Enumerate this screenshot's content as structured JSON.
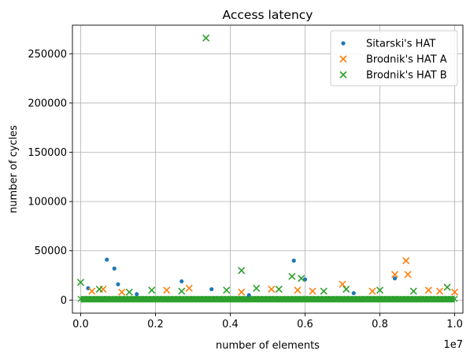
{
  "chart_data": {
    "type": "scatter",
    "title": "Access latency",
    "xlabel": "number of elements",
    "ylabel": "number of cycles",
    "x_offset_label": "1e7",
    "x_scale": 10000000,
    "xlim": [
      -220000,
      10220000
    ],
    "ylim": [
      -13300,
      279000
    ],
    "x_ticks": [
      0,
      2000000,
      4000000,
      6000000,
      8000000,
      10000000
    ],
    "x_tick_labels": [
      "0.0",
      "0.2",
      "0.4",
      "0.6",
      "0.8",
      "1.0"
    ],
    "y_ticks": [
      0,
      50000,
      100000,
      150000,
      200000,
      250000
    ],
    "y_tick_labels": [
      "0",
      "50000",
      "100000",
      "150000",
      "200000",
      "250000"
    ],
    "grid": true,
    "legend_position": "top-right",
    "band": {
      "x_range": [
        0,
        10000000
      ],
      "y_range": [
        0,
        4000
      ],
      "note": "dense band of points near zero for all series"
    },
    "series": [
      {
        "name": "Sitarski's HAT",
        "marker": "dot",
        "color": "#1f77b4",
        "points": [
          [
            200000,
            12000
          ],
          [
            700000,
            41000
          ],
          [
            900000,
            32000
          ],
          [
            1000000,
            16000
          ],
          [
            2700000,
            19000
          ],
          [
            3500000,
            11000
          ],
          [
            5700000,
            40000
          ],
          [
            6000000,
            21000
          ],
          [
            8400000,
            22000
          ],
          [
            1500000,
            6000
          ],
          [
            4500000,
            5000
          ],
          [
            7300000,
            7000
          ]
        ]
      },
      {
        "name": "Brodnik's HAT A",
        "marker": "x",
        "color": "#ff7f0e",
        "points": [
          [
            300000,
            9000
          ],
          [
            600000,
            11000
          ],
          [
            1100000,
            8000
          ],
          [
            2300000,
            10000
          ],
          [
            2900000,
            12000
          ],
          [
            4300000,
            8000
          ],
          [
            5100000,
            11000
          ],
          [
            5800000,
            10000
          ],
          [
            6200000,
            9000
          ],
          [
            7000000,
            16000
          ],
          [
            7800000,
            9000
          ],
          [
            8400000,
            26000
          ],
          [
            8700000,
            40000
          ],
          [
            8750000,
            26000
          ],
          [
            9300000,
            10000
          ],
          [
            9600000,
            9000
          ],
          [
            10000000,
            8000
          ]
        ]
      },
      {
        "name": "Brodnik's HAT B",
        "marker": "x",
        "color": "#2ca02c",
        "points": [
          [
            0,
            18000
          ],
          [
            500000,
            11000
          ],
          [
            1300000,
            8000
          ],
          [
            1900000,
            10000
          ],
          [
            2700000,
            9000
          ],
          [
            3350000,
            266000
          ],
          [
            3900000,
            10000
          ],
          [
            4300000,
            30000
          ],
          [
            4700000,
            12000
          ],
          [
            5300000,
            11000
          ],
          [
            5650000,
            24000
          ],
          [
            5900000,
            22000
          ],
          [
            6500000,
            9000
          ],
          [
            7100000,
            11000
          ],
          [
            8000000,
            10000
          ],
          [
            8900000,
            9000
          ],
          [
            9800000,
            13000
          ]
        ]
      }
    ]
  }
}
